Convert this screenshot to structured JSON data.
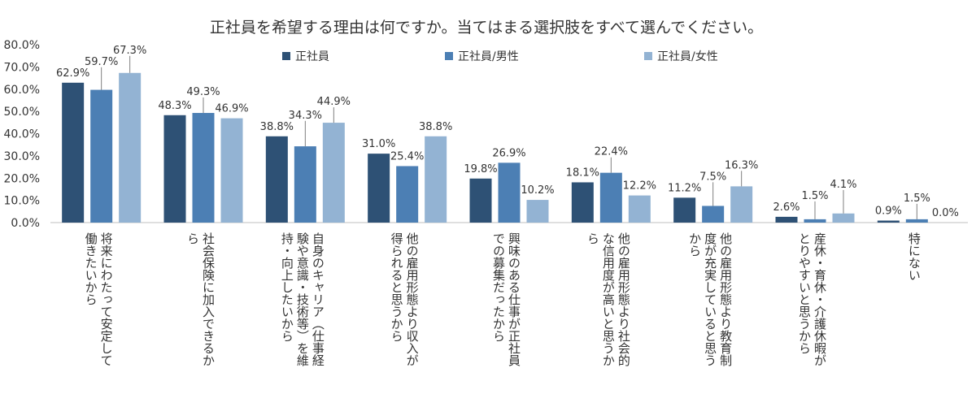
{
  "chart_data": {
    "type": "bar",
    "title": "正社員を希望する理由は何ですか。当てはまる選択肢をすべて選んでください。",
    "ylim": [
      0,
      80
    ],
    "y_ticks": [
      "0.0%",
      "10.0%",
      "20.0%",
      "30.0%",
      "40.0%",
      "50.0%",
      "60.0%",
      "70.0%",
      "80.0%"
    ],
    "grid": false,
    "legend_position": "top",
    "categories": [
      "将来にわたって安定して働きたいから",
      "社会保険に加入できるから",
      "自身のキャリア（仕事経験や意識・技術等）を維持・向上したいから",
      "他の雇用形態より収入が得られると思うから",
      "興味のある仕事が正社員での募集だったから",
      "他の雇用形態より社会的な信用度が高いと思うから",
      "他の雇用形態より教育制度が充実していると思うから",
      "産休・育休・介護休暇がとりやすいと思うから",
      "特にない"
    ],
    "series": [
      {
        "name": "正社員",
        "color": "#2e5175",
        "values": [
          62.9,
          48.3,
          38.8,
          31.0,
          19.8,
          18.1,
          11.2,
          2.6,
          0.9
        ],
        "labels": [
          "62.9%",
          "48.3%",
          "38.8%",
          "31.0%",
          "19.8%",
          "18.1%",
          "11.2%",
          "2.6%",
          "0.9%"
        ]
      },
      {
        "name": "正社員/男性",
        "color": "#4c7fb4",
        "values": [
          59.7,
          49.3,
          34.3,
          25.4,
          26.9,
          22.4,
          7.5,
          1.5,
          1.5
        ],
        "labels": [
          "59.7%",
          "49.3%",
          "34.3%",
          "25.4%",
          "26.9%",
          "22.4%",
          "7.5%",
          "1.5%",
          "1.5%"
        ]
      },
      {
        "name": "正社員/女性",
        "color": "#93b3d3",
        "values": [
          67.3,
          46.9,
          44.9,
          38.8,
          10.2,
          12.2,
          16.3,
          4.1,
          0.0
        ],
        "labels": [
          "67.3%",
          "46.9%",
          "44.9%",
          "38.8%",
          "10.2%",
          "12.2%",
          "16.3%",
          "4.1%",
          "0.0%"
        ]
      }
    ]
  }
}
